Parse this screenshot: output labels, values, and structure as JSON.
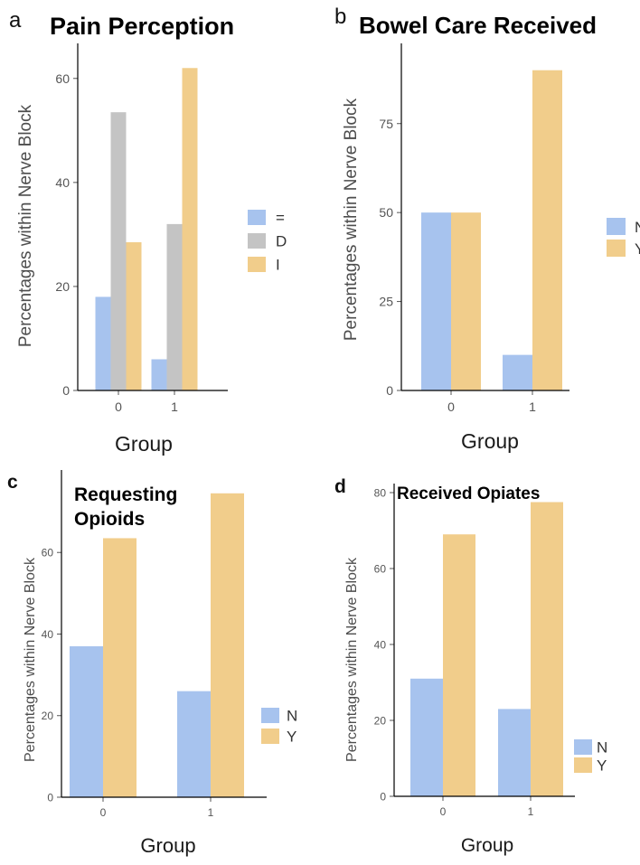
{
  "colors": {
    "blue": "#a7c3ee",
    "gray": "#c4c4c4",
    "orange": "#f1cd8b"
  },
  "chart_data": [
    {
      "panel": "a",
      "type": "bar",
      "title": "Pain Perception",
      "xlabel": "Group",
      "ylabel": "Percentages within Nerve  Block",
      "categories": [
        "0",
        "1"
      ],
      "series": [
        {
          "name": "=",
          "color": "blue",
          "values": [
            18,
            6
          ]
        },
        {
          "name": "D",
          "color": "gray",
          "values": [
            53.5,
            32
          ]
        },
        {
          "name": "I",
          "color": "orange",
          "values": [
            28.5,
            62
          ]
        }
      ],
      "ylim": [
        0,
        65
      ],
      "yticks": [
        0,
        20,
        40,
        60
      ],
      "legend": [
        "=",
        "D",
        "I"
      ],
      "legend_position": "right"
    },
    {
      "panel": "b",
      "type": "bar",
      "title": "Bowel Care Received",
      "xlabel": "Group",
      "ylabel": "Percentages within Nerve  Block",
      "categories": [
        "0",
        "1"
      ],
      "series": [
        {
          "name": "N",
          "color": "blue",
          "values": [
            50,
            10
          ]
        },
        {
          "name": "Y",
          "color": "orange",
          "values": [
            50,
            90
          ]
        }
      ],
      "ylim": [
        0,
        95
      ],
      "yticks": [
        0,
        25,
        50,
        75
      ],
      "legend": [
        "N",
        "Y"
      ],
      "legend_position": "right (clipped)"
    },
    {
      "panel": "c",
      "type": "bar",
      "title": "Requesting Opioids",
      "xlabel": "Group",
      "ylabel": "Percentages within Nerve  Block",
      "categories": [
        "0",
        "1"
      ],
      "series": [
        {
          "name": "N",
          "color": "blue",
          "values": [
            37,
            26
          ]
        },
        {
          "name": "Y",
          "color": "orange",
          "values": [
            63.5,
            74.5
          ]
        }
      ],
      "ylim": [
        0,
        78
      ],
      "yticks": [
        0,
        20,
        40,
        60
      ],
      "legend": [
        "N",
        "Y"
      ],
      "legend_position": "right"
    },
    {
      "panel": "d",
      "type": "bar",
      "title": "Received Opiates",
      "xlabel": "Group",
      "ylabel": "Percentages within Nerve  Block",
      "categories": [
        "0",
        "1"
      ],
      "series": [
        {
          "name": "N",
          "color": "blue",
          "values": [
            31,
            23
          ]
        },
        {
          "name": "Y",
          "color": "orange",
          "values": [
            69,
            77.5
          ]
        }
      ],
      "ylim": [
        0,
        80
      ],
      "yticks": [
        0,
        20,
        40,
        60,
        80
      ],
      "legend": [
        "N",
        "Y"
      ],
      "legend_position": "right"
    }
  ]
}
